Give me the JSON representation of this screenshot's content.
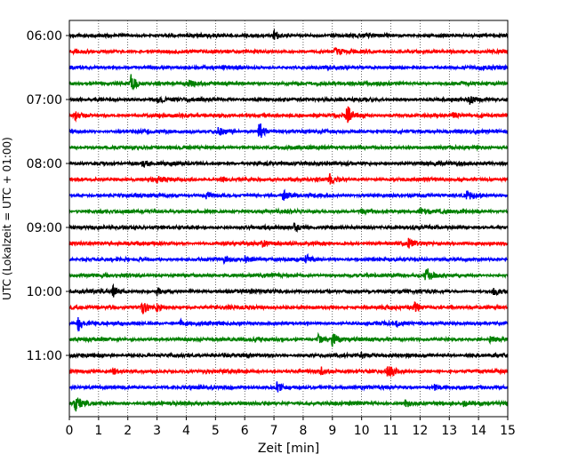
{
  "chart_data": {
    "type": "line",
    "title": "",
    "xlabel": "Zeit  [min]",
    "ylabel": "UTC (Lokalzeit = UTC + 01:00)",
    "xlim": [
      0,
      15
    ],
    "x_ticks": [
      "0",
      "1",
      "2",
      "3",
      "4",
      "5",
      "6",
      "7",
      "8",
      "9",
      "10",
      "11",
      "12",
      "13",
      "14",
      "15"
    ],
    "y_ticks": [
      {
        "label": "06:00",
        "trace": 0
      },
      {
        "label": "07:00",
        "trace": 4
      },
      {
        "label": "08:00",
        "trace": 8
      },
      {
        "label": "09:00",
        "trace": 12
      },
      {
        "label": "10:00",
        "trace": 16
      },
      {
        "label": "11:00",
        "trace": 20
      }
    ],
    "grid": "vertical dotted",
    "trace_interval_min": 15,
    "color_cycle": [
      "#000000",
      "#ff0000",
      "#0000ff",
      "#008000"
    ],
    "traces": [
      {
        "start": "06:00",
        "color": "#000000",
        "events": [
          {
            "t": 7.0,
            "amp": 0.5
          }
        ]
      },
      {
        "start": "06:15",
        "color": "#ff0000",
        "events": [
          {
            "t": 9.1,
            "amp": 0.4
          }
        ]
      },
      {
        "start": "06:30",
        "color": "#0000ff",
        "events": []
      },
      {
        "start": "06:45",
        "color": "#008000",
        "events": [
          {
            "t": 2.1,
            "amp": 0.9
          },
          {
            "t": 4.1,
            "amp": 0.3
          }
        ]
      },
      {
        "start": "07:00",
        "color": "#000000",
        "events": [
          {
            "t": 3.0,
            "amp": 0.4
          },
          {
            "t": 13.7,
            "amp": 0.5
          }
        ]
      },
      {
        "start": "07:15",
        "color": "#ff0000",
        "events": [
          {
            "t": 9.5,
            "amp": 1.0
          },
          {
            "t": 0.2,
            "amp": 0.4
          },
          {
            "t": 13.1,
            "amp": 0.3
          }
        ]
      },
      {
        "start": "07:30",
        "color": "#0000ff",
        "events": [
          {
            "t": 6.5,
            "amp": 1.1
          },
          {
            "t": 5.1,
            "amp": 0.4
          }
        ]
      },
      {
        "start": "07:45",
        "color": "#008000",
        "events": []
      },
      {
        "start": "08:00",
        "color": "#000000",
        "events": [
          {
            "t": 2.5,
            "amp": 0.4
          }
        ]
      },
      {
        "start": "08:15",
        "color": "#ff0000",
        "events": [
          {
            "t": 8.9,
            "amp": 0.5
          },
          {
            "t": 3.0,
            "amp": 0.3
          },
          {
            "t": 5.2,
            "amp": 0.3
          }
        ]
      },
      {
        "start": "08:30",
        "color": "#0000ff",
        "events": [
          {
            "t": 7.3,
            "amp": 0.6
          },
          {
            "t": 4.7,
            "amp": 0.4
          },
          {
            "t": 13.6,
            "amp": 0.5
          }
        ]
      },
      {
        "start": "08:45",
        "color": "#008000",
        "events": [
          {
            "t": 12.0,
            "amp": 0.4
          },
          {
            "t": 10.0,
            "amp": 0.3
          }
        ]
      },
      {
        "start": "09:00",
        "color": "#000000",
        "events": [
          {
            "t": 7.7,
            "amp": 0.4
          }
        ]
      },
      {
        "start": "09:15",
        "color": "#ff0000",
        "events": [
          {
            "t": 11.6,
            "amp": 0.4
          },
          {
            "t": 6.6,
            "amp": 0.3
          }
        ]
      },
      {
        "start": "09:30",
        "color": "#0000ff",
        "events": [
          {
            "t": 8.1,
            "amp": 0.5
          },
          {
            "t": 5.3,
            "amp": 0.3
          },
          {
            "t": 6.0,
            "amp": 0.4
          }
        ]
      },
      {
        "start": "09:45",
        "color": "#008000",
        "events": [
          {
            "t": 12.2,
            "amp": 0.9
          }
        ]
      },
      {
        "start": "10:00",
        "color": "#000000",
        "events": [
          {
            "t": 1.5,
            "amp": 0.5
          },
          {
            "t": 3.0,
            "amp": 0.4
          },
          {
            "t": 14.5,
            "amp": 0.4
          }
        ]
      },
      {
        "start": "10:15",
        "color": "#ff0000",
        "events": [
          {
            "t": 2.5,
            "amp": 0.6
          },
          {
            "t": 3.0,
            "amp": 0.5
          },
          {
            "t": 11.8,
            "amp": 0.5
          }
        ]
      },
      {
        "start": "10:30",
        "color": "#0000ff",
        "events": [
          {
            "t": 0.3,
            "amp": 0.8
          },
          {
            "t": 3.8,
            "amp": 0.3
          },
          {
            "t": 11.2,
            "amp": 0.3
          }
        ]
      },
      {
        "start": "10:45",
        "color": "#008000",
        "events": [
          {
            "t": 9.0,
            "amp": 0.7
          },
          {
            "t": 8.5,
            "amp": 0.5
          },
          {
            "t": 14.4,
            "amp": 0.4
          }
        ]
      },
      {
        "start": "11:00",
        "color": "#000000",
        "events": [
          {
            "t": 10.0,
            "amp": 0.3
          }
        ]
      },
      {
        "start": "11:15",
        "color": "#ff0000",
        "events": [
          {
            "t": 10.9,
            "amp": 0.7
          },
          {
            "t": 8.6,
            "amp": 0.4
          },
          {
            "t": 1.5,
            "amp": 0.3
          }
        ]
      },
      {
        "start": "11:30",
        "color": "#0000ff",
        "events": [
          {
            "t": 7.1,
            "amp": 0.5
          },
          {
            "t": 12.5,
            "amp": 0.3
          }
        ]
      },
      {
        "start": "11:45",
        "color": "#008000",
        "events": [
          {
            "t": 0.2,
            "amp": 0.8
          },
          {
            "t": 11.5,
            "amp": 0.5
          },
          {
            "t": 13.5,
            "amp": 0.3
          }
        ]
      }
    ]
  }
}
